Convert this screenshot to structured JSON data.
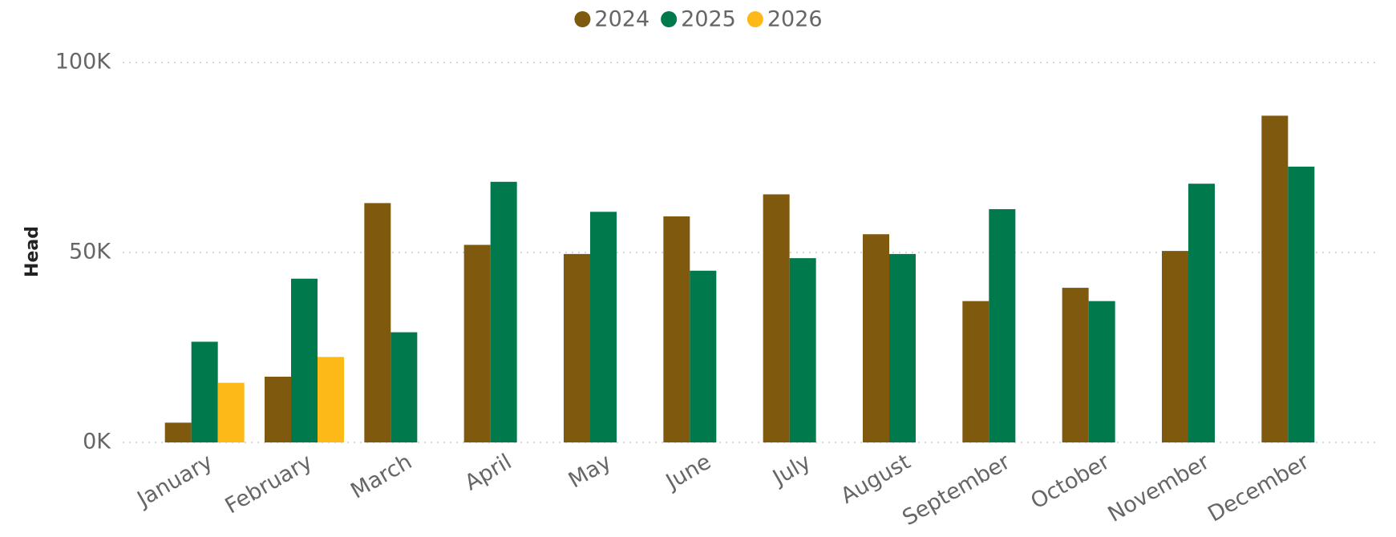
{
  "chart_data": {
    "type": "bar",
    "y_label": "Head",
    "categories": [
      "January",
      "February",
      "March",
      "April",
      "May",
      "June",
      "July",
      "August",
      "September",
      "October",
      "November",
      "December"
    ],
    "series": [
      {
        "name": "2024",
        "color": "#7F5A0E",
        "values": [
          5200,
          17300,
          63000,
          52000,
          49600,
          59500,
          65300,
          54800,
          37200,
          40700,
          50400,
          86000
        ]
      },
      {
        "name": "2025",
        "color": "#007A4D",
        "values": [
          26500,
          43100,
          29000,
          68600,
          60700,
          45200,
          48500,
          49600,
          61400,
          37200,
          68100,
          72600
        ]
      },
      {
        "name": "2026",
        "color": "#FDB918",
        "values": [
          15700,
          22500,
          null,
          null,
          null,
          null,
          null,
          null,
          null,
          null,
          null,
          null
        ]
      }
    ],
    "ylim": [
      0,
      100000
    ],
    "yticks": [
      {
        "value": 0,
        "label": "0K"
      },
      {
        "value": 50000,
        "label": "50K"
      },
      {
        "value": 100000,
        "label": "100K"
      }
    ],
    "grid": true,
    "legend": "top"
  }
}
